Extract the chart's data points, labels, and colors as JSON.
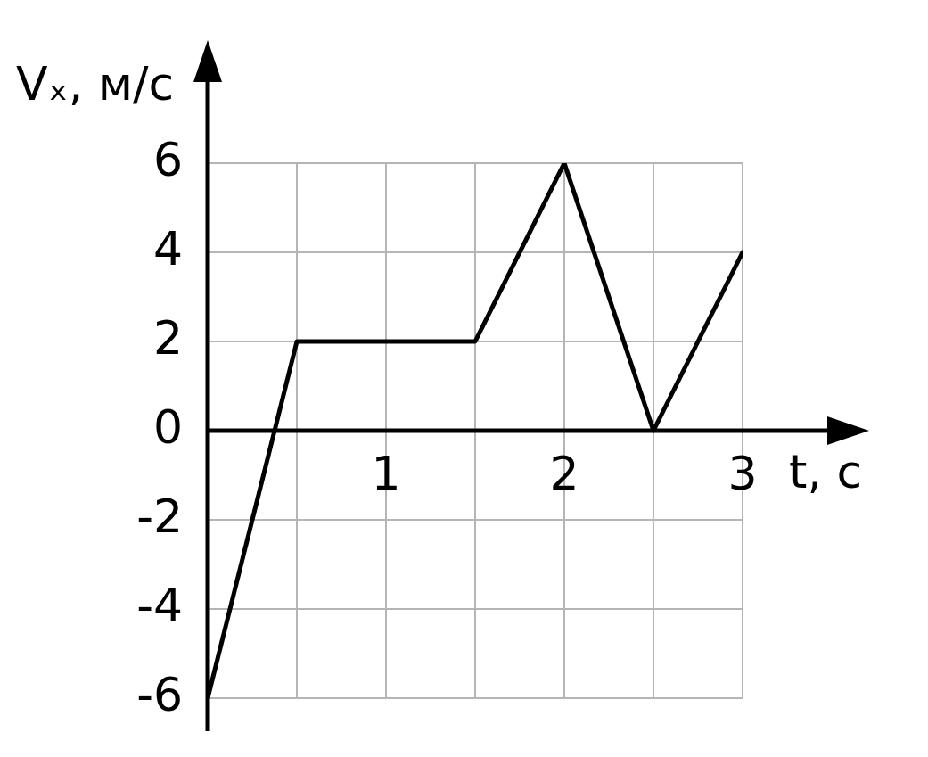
{
  "chart_data": {
    "type": "line",
    "xlabel": "t, с",
    "ylabel": "Vₓ, м/с",
    "x": [
      0,
      0.5,
      1.5,
      2,
      2.5,
      3
    ],
    "values": [
      -6,
      2,
      2,
      6,
      0,
      4
    ],
    "color": "#000000",
    "xlim": [
      0,
      3
    ],
    "ylim": [
      -6,
      6
    ],
    "xticks": [
      {
        "value": 0,
        "label": null
      },
      {
        "value": 0.5,
        "label": null
      },
      1,
      {
        "value": 1.5,
        "label": null
      },
      2,
      {
        "value": 2.5,
        "label": null
      },
      3
    ],
    "yticks": [
      -6,
      -4,
      -2,
      0,
      2,
      4,
      6
    ],
    "grid": true,
    "marker": "none"
  }
}
